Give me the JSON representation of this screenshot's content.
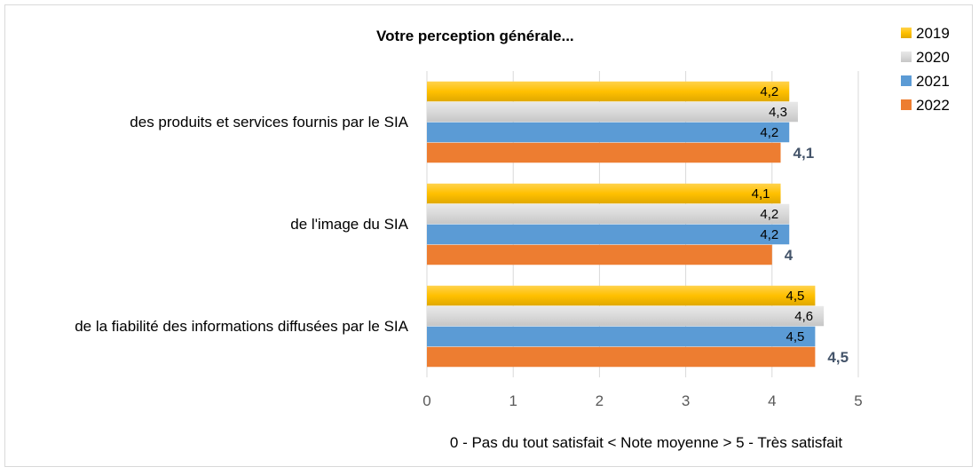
{
  "chart_data": {
    "type": "bar",
    "orientation": "horizontal",
    "title": "Votre perception générale...",
    "xlabel": "0 - Pas du tout satisfait < Note moyenne > 5 - Très satisfait",
    "xlim": [
      0,
      5
    ],
    "xticks": [
      "0",
      "1",
      "2",
      "3",
      "4",
      "5"
    ],
    "grid": true,
    "legend_position": "top-right",
    "categories": [
      "des produits et services fournis par le SIA",
      "de l'image du SIA",
      "de la fiabilité des informations diffusées par le SIA"
    ],
    "series": [
      {
        "name": "2019",
        "color": "#ffc000",
        "values": [
          4.2,
          4.1,
          4.5
        ],
        "labels": [
          "4,2",
          "4,1",
          "4,5"
        ]
      },
      {
        "name": "2020",
        "color": "#d9d9d9",
        "values": [
          4.3,
          4.2,
          4.6
        ],
        "labels": [
          "4,3",
          "4,2",
          "4,6"
        ]
      },
      {
        "name": "2021",
        "color": "#5b9bd5",
        "values": [
          4.2,
          4.2,
          4.5
        ],
        "labels": [
          "4,2",
          "4,2",
          "4,5"
        ]
      },
      {
        "name": "2022",
        "color": "#ed7d31",
        "values": [
          4.1,
          4.0,
          4.5
        ],
        "labels": [
          "4,1",
          "4",
          "4,5"
        ]
      }
    ]
  }
}
